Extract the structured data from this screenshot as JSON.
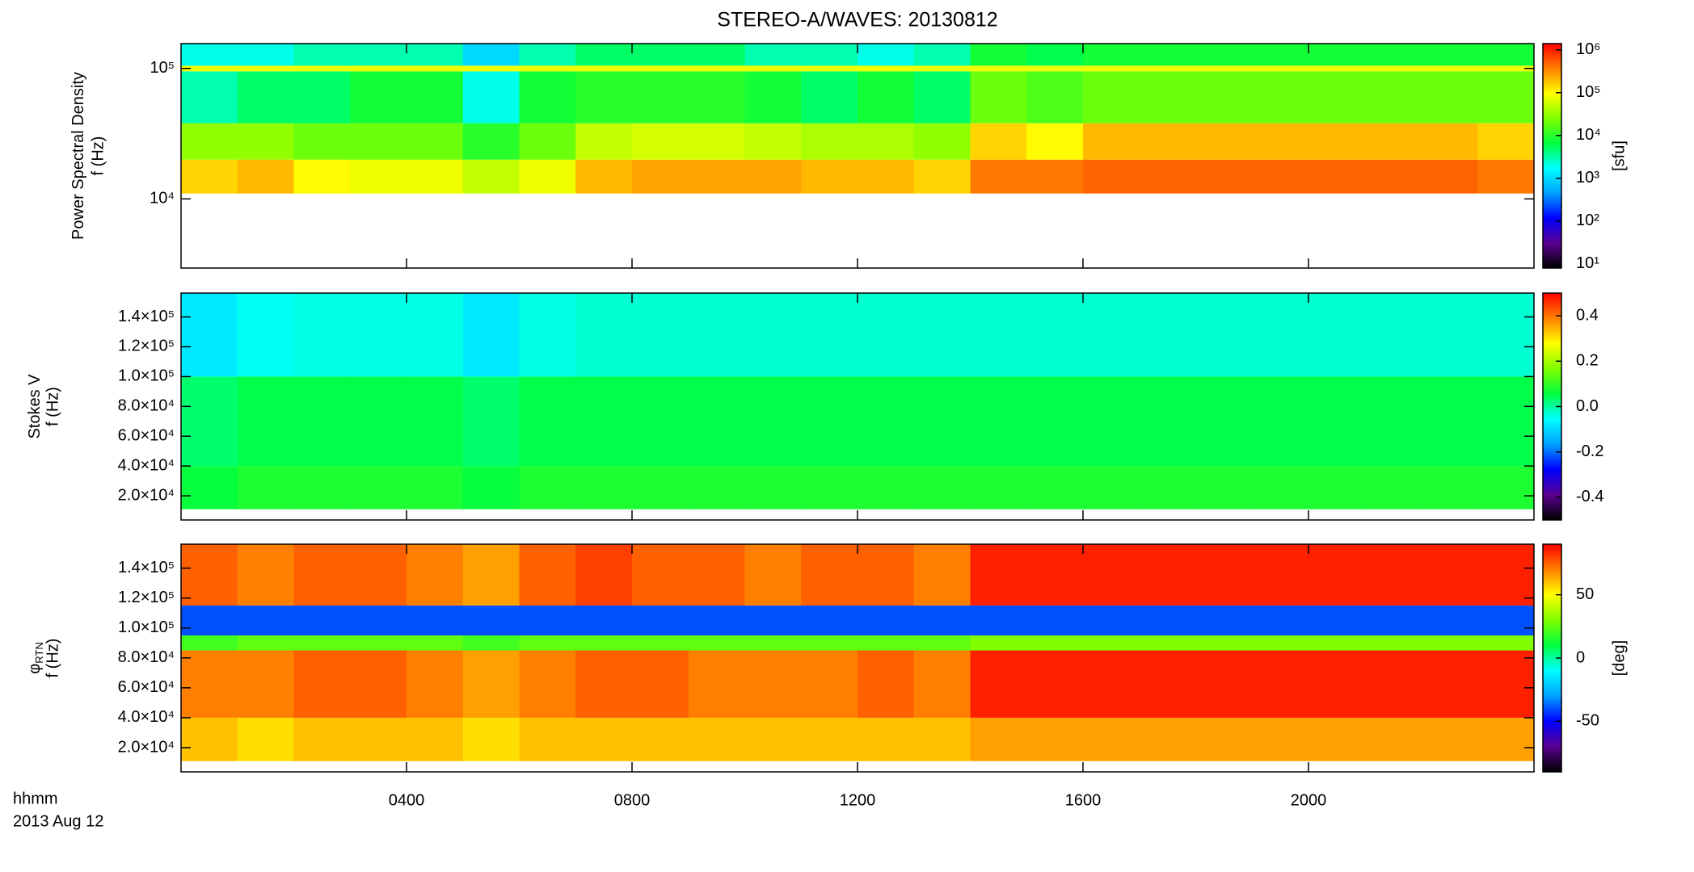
{
  "chart_data": [
    {
      "type": "heatmap",
      "title": "STEREO-A/WAVES: 20130812",
      "ylabel": "Power Spectral Density",
      "ylabel2": "f (Hz)",
      "ylog": true,
      "ylim": [
        2950,
        155000
      ],
      "yticks": [
        {
          "value": 10000,
          "label": "10⁴"
        },
        {
          "value": 100000,
          "label": "10⁵"
        }
      ],
      "clog": true,
      "clim": [
        8,
        1400000
      ],
      "cunit": "[sfu]",
      "cticks": [
        {
          "value": 10,
          "label": "10¹"
        },
        {
          "value": 100,
          "label": "10²"
        },
        {
          "value": 1000,
          "label": "10³"
        },
        {
          "value": 10000,
          "label": "10⁴"
        },
        {
          "value": 100000,
          "label": "10⁵"
        },
        {
          "value": 1000000,
          "label": "10⁶"
        }
      ],
      "xbins": [
        0,
        1,
        2,
        3,
        4,
        5,
        6,
        7,
        8,
        9,
        10,
        11,
        12,
        13,
        14,
        15,
        16,
        17,
        18,
        19,
        20,
        21,
        22,
        23,
        24
      ],
      "ybins": [
        11000,
        20000,
        38000,
        95000,
        105000,
        155000
      ],
      "z": [
        [
          150000,
          200000,
          100000,
          80000,
          80000,
          50000,
          80000,
          200000,
          250000,
          250000,
          250000,
          200000,
          200000,
          150000,
          400000,
          400000,
          500000,
          500000,
          500000,
          500000,
          500000,
          500000,
          500000,
          400000
        ],
        [
          30000,
          30000,
          20000,
          20000,
          20000,
          10000,
          20000,
          50000,
          60000,
          60000,
          50000,
          40000,
          40000,
          30000,
          150000,
          100000,
          200000,
          200000,
          200000,
          200000,
          200000,
          200000,
          200000,
          150000
        ],
        [
          3000,
          5000,
          5000,
          8000,
          8000,
          2000,
          8000,
          10000,
          10000,
          10000,
          8000,
          5000,
          8000,
          5000,
          20000,
          15000,
          20000,
          20000,
          20000,
          20000,
          20000,
          20000,
          20000,
          20000
        ],
        [
          80000,
          80000,
          80000,
          80000,
          80000,
          80000,
          80000,
          80000,
          80000,
          80000,
          80000,
          80000,
          80000,
          80000,
          80000,
          80000,
          80000,
          80000,
          80000,
          80000,
          80000,
          80000,
          80000,
          80000
        ],
        [
          2000,
          2000,
          3000,
          3000,
          3000,
          1000,
          3000,
          5000,
          5000,
          5000,
          3000,
          3000,
          2000,
          3000,
          8000,
          6000,
          8000,
          8000,
          8000,
          8000,
          8000,
          8000,
          8000,
          8000
        ]
      ]
    },
    {
      "type": "heatmap",
      "ylabel": "Stokes V",
      "ylabel2": "f (Hz)",
      "ylog": false,
      "ylim": [
        3800,
        156000
      ],
      "yticks": [
        {
          "value": 20000,
          "label": "2.0×10⁴"
        },
        {
          "value": 40000,
          "label": "4.0×10⁴"
        },
        {
          "value": 60000,
          "label": "6.0×10⁴"
        },
        {
          "value": 80000,
          "label": "8.0×10⁴"
        },
        {
          "value": 100000,
          "label": "1.0×10⁵"
        },
        {
          "value": 120000,
          "label": "1.2×10⁵"
        },
        {
          "value": 140000,
          "label": "1.4×10⁵"
        }
      ],
      "clog": false,
      "clim": [
        -0.5,
        0.5
      ],
      "cticks": [
        -0.4,
        -0.2,
        {
          "value": 0,
          "label": "0.0"
        },
        0.2,
        0.4
      ],
      "xbins": [
        0,
        1,
        2,
        3,
        4,
        5,
        6,
        7,
        8,
        9,
        10,
        11,
        12,
        13,
        14,
        15,
        16,
        17,
        18,
        19,
        20,
        21,
        22,
        23,
        24
      ],
      "ybins": [
        11000,
        40000,
        100000,
        156000
      ],
      "z": [
        [
          0.06,
          0.08,
          0.08,
          0.08,
          0.08,
          0.06,
          0.08,
          0.08,
          0.08,
          0.08,
          0.08,
          0.08,
          0.08,
          0.08,
          0.08,
          0.08,
          0.08,
          0.08,
          0.08,
          0.08,
          0.08,
          0.08,
          0.08,
          0.08
        ],
        [
          0.03,
          0.05,
          0.05,
          0.05,
          0.05,
          0.03,
          0.05,
          0.05,
          0.05,
          0.05,
          0.05,
          0.05,
          0.05,
          0.05,
          0.05,
          0.05,
          0.05,
          0.05,
          0.05,
          0.05,
          0.05,
          0.05,
          0.05,
          0.05
        ],
        [
          -0.08,
          -0.05,
          -0.04,
          -0.04,
          -0.04,
          -0.08,
          -0.04,
          -0.03,
          -0.03,
          -0.03,
          -0.03,
          -0.03,
          -0.03,
          -0.03,
          -0.03,
          -0.03,
          -0.03,
          -0.03,
          -0.03,
          -0.03,
          -0.03,
          -0.03,
          -0.03,
          -0.03
        ]
      ]
    },
    {
      "type": "heatmap",
      "ylabel": "φ",
      "ylabel_sub": "RTN",
      "ylabel2": "f (Hz)",
      "ylog": false,
      "ylim": [
        3800,
        156000
      ],
      "yticks": [
        {
          "value": 20000,
          "label": "2.0×10⁴"
        },
        {
          "value": 40000,
          "label": "4.0×10⁴"
        },
        {
          "value": 60000,
          "label": "6.0×10⁴"
        },
        {
          "value": 80000,
          "label": "8.0×10⁴"
        },
        {
          "value": 100000,
          "label": "1.0×10⁵"
        },
        {
          "value": 120000,
          "label": "1.2×10⁵"
        },
        {
          "value": 140000,
          "label": "1.4×10⁵"
        }
      ],
      "clog": false,
      "clim": [
        -90,
        90
      ],
      "cunit": "[deg]",
      "cticks": [
        -50,
        0,
        50
      ],
      "xlim": [
        0,
        24
      ],
      "xticks": [
        {
          "value": 4,
          "label": "0400"
        },
        {
          "value": 8,
          "label": "0800"
        },
        {
          "value": 12,
          "label": "1200"
        },
        {
          "value": 16,
          "label": "1600"
        },
        {
          "value": 20,
          "label": "2000"
        }
      ],
      "xlabel": "hhmm",
      "date": "2013 Aug 12",
      "xbins": [
        0,
        1,
        2,
        3,
        4,
        5,
        6,
        7,
        8,
        9,
        10,
        11,
        12,
        13,
        14,
        15,
        16,
        17,
        18,
        19,
        20,
        21,
        22,
        23,
        24
      ],
      "ybins": [
        11000,
        40000,
        85000,
        95000,
        115000,
        156000
      ],
      "z": [
        [
          60,
          55,
          60,
          60,
          60,
          55,
          60,
          60,
          60,
          60,
          60,
          60,
          60,
          60,
          65,
          65,
          65,
          65,
          65,
          65,
          65,
          65,
          65,
          65
        ],
        [
          70,
          70,
          75,
          75,
          70,
          65,
          70,
          75,
          75,
          70,
          70,
          70,
          75,
          70,
          85,
          85,
          85,
          85,
          85,
          85,
          85,
          85,
          85,
          85
        ],
        [
          20,
          25,
          25,
          25,
          25,
          20,
          25,
          25,
          25,
          25,
          25,
          25,
          25,
          25,
          30,
          30,
          30,
          30,
          30,
          30,
          30,
          30,
          30,
          30
        ],
        [
          -40,
          -40,
          -40,
          -40,
          -40,
          -40,
          -40,
          -40,
          -40,
          -40,
          -40,
          -40,
          -40,
          -40,
          -40,
          -40,
          -40,
          -40,
          -40,
          -40,
          -40,
          -40,
          -40,
          -40
        ],
        [
          75,
          70,
          75,
          75,
          70,
          65,
          75,
          80,
          75,
          75,
          70,
          75,
          75,
          70,
          85,
          85,
          85,
          85,
          85,
          85,
          85,
          85,
          85,
          85
        ]
      ]
    }
  ],
  "colormap": [
    "#000000",
    "#5a0090",
    "#0000ff",
    "#00a0ff",
    "#00ffff",
    "#00ff40",
    "#80ff00",
    "#ffff00",
    "#ff8000",
    "#ff0000"
  ]
}
